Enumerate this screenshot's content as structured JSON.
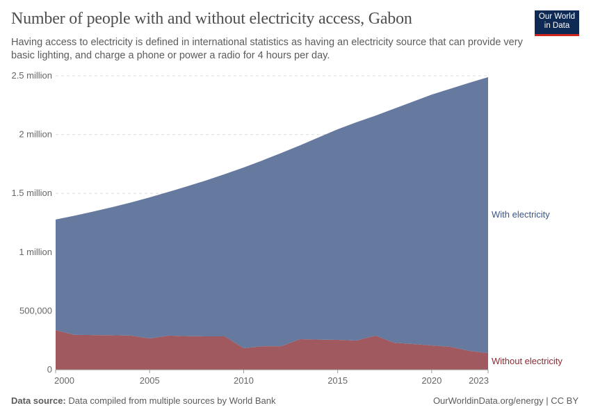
{
  "header": {
    "title": "Number of people with and without electricity access, Gabon",
    "subtitle": "Having access to electricity is defined in international statistics as having an electricity source that can provide very basic lighting, and charge a phone or power a radio for 4 hours per day.",
    "logo": "Our World in Data"
  },
  "footer": {
    "source_label": "Data source:",
    "source_text": " Data compiled from multiple sources by World Bank",
    "right": "OurWorldinData.org/energy | CC BY"
  },
  "chart_data": {
    "type": "area",
    "stacked": true,
    "title": "Number of people with and without electricity access, Gabon",
    "x": [
      2000,
      2001,
      2002,
      2003,
      2004,
      2005,
      2006,
      2007,
      2008,
      2009,
      2010,
      2011,
      2012,
      2013,
      2014,
      2015,
      2016,
      2017,
      2018,
      2019,
      2020,
      2021,
      2022,
      2023
    ],
    "series": [
      {
        "name": "Without electricity",
        "color": "#a05a5f",
        "label_color": "#8c2a33",
        "values": [
          337000,
          296000,
          295000,
          293000,
          290000,
          266000,
          290000,
          286000,
          284000,
          284000,
          183000,
          200000,
          200000,
          260000,
          256000,
          254000,
          248000,
          290000,
          230000,
          219000,
          207000,
          195000,
          160000,
          142000
        ]
      },
      {
        "name": "With electricity",
        "color": "#66799e",
        "label_color": "#3b5488",
        "values": [
          940000,
          1014000,
          1050000,
          1089000,
          1132000,
          1200000,
          1222000,
          1274000,
          1326000,
          1380000,
          1537000,
          1580000,
          1643000,
          1648000,
          1721000,
          1791000,
          1857000,
          1870000,
          1990000,
          2061000,
          2133000,
          2195000,
          2280000,
          2346000
        ]
      }
    ],
    "ylim": [
      0,
      2500000
    ],
    "yticks": [
      {
        "v": 0,
        "label": "0"
      },
      {
        "v": 500000,
        "label": "500,000"
      },
      {
        "v": 1000000,
        "label": "1 million"
      },
      {
        "v": 1500000,
        "label": "1.5 million"
      },
      {
        "v": 2000000,
        "label": "2 million"
      },
      {
        "v": 2500000,
        "label": "2.5 million"
      }
    ],
    "xticks": [
      {
        "v": 2000,
        "label": "2000"
      },
      {
        "v": 2005,
        "label": "2005"
      },
      {
        "v": 2010,
        "label": "2010"
      },
      {
        "v": 2015,
        "label": "2015"
      },
      {
        "v": 2020,
        "label": "2020"
      },
      {
        "v": 2023,
        "label": "2023"
      }
    ],
    "grid": "horizontal dashed",
    "legend": "right, inline labels"
  }
}
